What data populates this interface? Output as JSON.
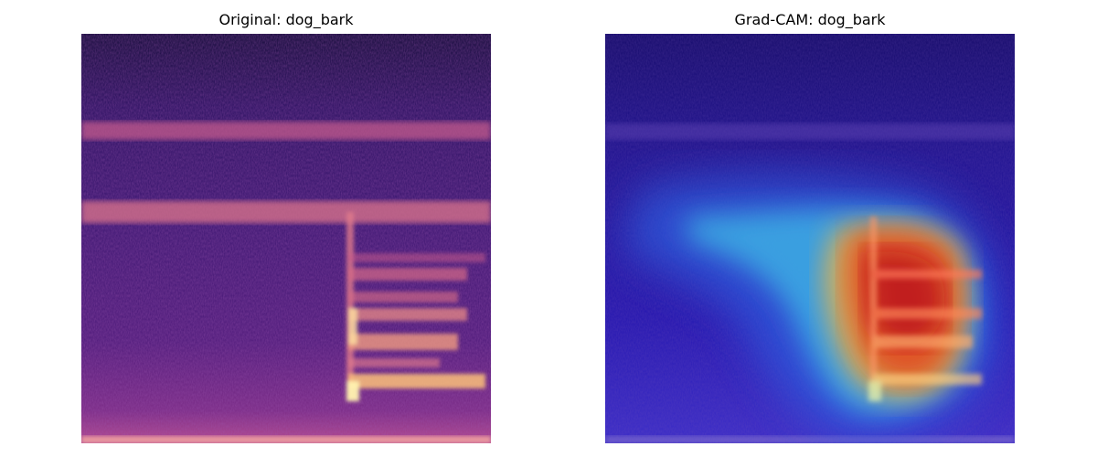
{
  "figure": {
    "panels": [
      {
        "title": "Original: dog_bark",
        "image": "spectrogram",
        "colormap": "magma"
      },
      {
        "title": "Grad-CAM: dog_bark",
        "image": "spectrogram-with-gradcam-heatmap-overlay",
        "colormap": "jet"
      }
    ]
  },
  "colors": {
    "background": "#ffffff",
    "spectrogram_dark": "#1f0f4f",
    "spectrogram_band": "#e07a8c",
    "spectrogram_bright": "#fff2b0",
    "heat_blue": "#2a16c8",
    "heat_cyan": "#3fc3e8",
    "heat_red": "#d4111f"
  }
}
